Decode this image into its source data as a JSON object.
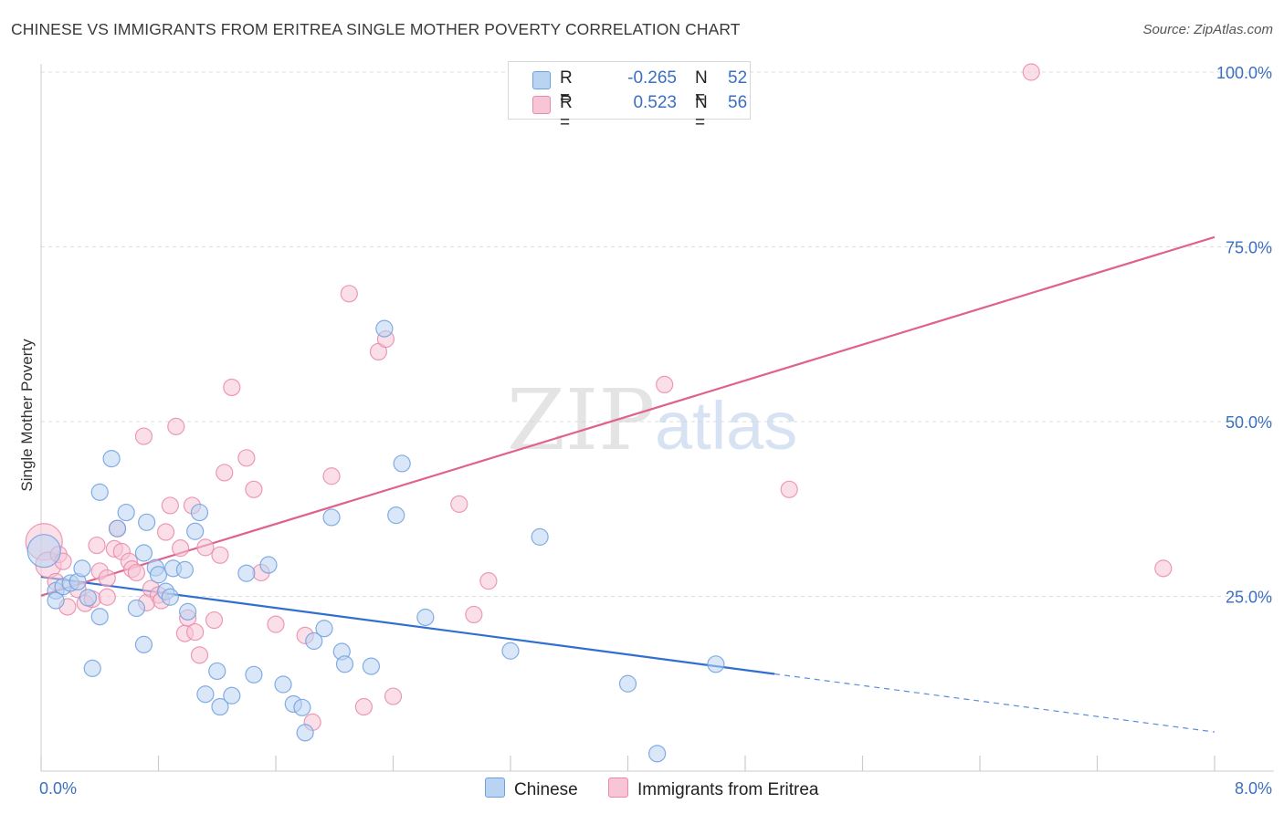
{
  "title": "CHINESE VS IMMIGRANTS FROM ERITREA SINGLE MOTHER POVERTY CORRELATION CHART",
  "source": "Source: ZipAtlas.com",
  "watermark": {
    "zip": "ZIP",
    "atlas": "atlas"
  },
  "legend": {
    "rows": [
      {
        "r_label": "R =",
        "r_value": "-0.265",
        "n_label": "N =",
        "n_value": "52"
      },
      {
        "r_label": "R =",
        "r_value": "0.523",
        "n_label": "N =",
        "n_value": "56"
      }
    ]
  },
  "bottom_legend": {
    "chinese": "Chinese",
    "eritrea": "Immigrants from Eritrea"
  },
  "colors": {
    "chinese_fill": "#b9d3f3",
    "chinese_stroke": "#6fa0de",
    "chinese_line": "#2f6fd0",
    "eritrea_fill": "#f7c5d5",
    "eritrea_stroke": "#e98aa8",
    "eritrea_line": "#e0628c",
    "tick_label": "#3a6fc4",
    "grid": "#dddddd"
  },
  "chart_data": {
    "type": "scatter",
    "title": "CHINESE VS IMMIGRANTS FROM ERITREA SINGLE MOTHER POVERTY CORRELATION CHART",
    "xlabel": "",
    "ylabel": "Single Mother Poverty",
    "xlim": [
      0,
      8.4
    ],
    "ylim": [
      0,
      102.4
    ],
    "x_tick_labels": [
      {
        "value": 0,
        "label": "0.0%"
      },
      {
        "value": 8,
        "label": "8.0%"
      }
    ],
    "y_tick_labels": [
      {
        "value": 25,
        "label": "25.0%"
      },
      {
        "value": 50,
        "label": "50.0%"
      },
      {
        "value": 75,
        "label": "75.0%"
      },
      {
        "value": 100,
        "label": "100.0%"
      }
    ],
    "x_minor_ticks": [
      0,
      0.8,
      1.6,
      2.4,
      3.2,
      4.0,
      4.8,
      5.6,
      6.4,
      7.2,
      8.0
    ],
    "grid": true,
    "legend_position": "top-center",
    "series": [
      {
        "name": "Chinese",
        "color": "#6fa0de",
        "trend": {
          "x": [
            0,
            5.0
          ],
          "y": [
            27.8,
            13.9
          ],
          "dashed_to": {
            "x": 8.0,
            "y": 5.6
          }
        },
        "points": [
          [
            0.02,
            31.5,
            18
          ],
          [
            0.1,
            25.8,
            9
          ],
          [
            0.15,
            26.4,
            9
          ],
          [
            0.2,
            26.9,
            9
          ],
          [
            0.25,
            27.1,
            9
          ],
          [
            0.1,
            24.4,
            9
          ],
          [
            0.28,
            29.0,
            9
          ],
          [
            0.32,
            24.8,
            9
          ],
          [
            0.4,
            22.1,
            9
          ],
          [
            0.48,
            44.7,
            9
          ],
          [
            0.4,
            39.9,
            9
          ],
          [
            0.52,
            34.7,
            9
          ],
          [
            0.58,
            37.0,
            9
          ],
          [
            0.65,
            23.3,
            9
          ],
          [
            0.7,
            31.2,
            9
          ],
          [
            0.72,
            35.6,
            9
          ],
          [
            0.78,
            29.1,
            9
          ],
          [
            0.8,
            28.1,
            9
          ],
          [
            0.85,
            25.7,
            9
          ],
          [
            0.88,
            24.9,
            9
          ],
          [
            0.9,
            29.0,
            9
          ],
          [
            0.98,
            28.8,
            9
          ],
          [
            1.0,
            22.8,
            9
          ],
          [
            1.05,
            34.3,
            9
          ],
          [
            1.08,
            37.0,
            9
          ],
          [
            0.35,
            14.7,
            9
          ],
          [
            0.7,
            18.1,
            9
          ],
          [
            1.12,
            11.0,
            9
          ],
          [
            1.2,
            14.3,
            9
          ],
          [
            1.22,
            9.2,
            9
          ],
          [
            1.3,
            10.8,
            9
          ],
          [
            1.4,
            28.3,
            9
          ],
          [
            1.45,
            13.8,
            9
          ],
          [
            1.55,
            29.5,
            9
          ],
          [
            1.65,
            12.4,
            9
          ],
          [
            1.72,
            9.6,
            9
          ],
          [
            1.78,
            9.1,
            9
          ],
          [
            1.8,
            5.5,
            9
          ],
          [
            1.86,
            18.6,
            9
          ],
          [
            1.93,
            20.4,
            9
          ],
          [
            1.98,
            36.3,
            9
          ],
          [
            2.05,
            17.1,
            9
          ],
          [
            2.07,
            15.3,
            9
          ],
          [
            2.25,
            15.0,
            9
          ],
          [
            2.34,
            63.3,
            9
          ],
          [
            2.42,
            36.6,
            9
          ],
          [
            2.46,
            44.0,
            9
          ],
          [
            2.62,
            22.0,
            9
          ],
          [
            3.2,
            17.2,
            9
          ],
          [
            3.4,
            33.5,
            9
          ],
          [
            4.0,
            12.5,
            9
          ],
          [
            4.2,
            2.5,
            9
          ],
          [
            4.6,
            15.3,
            9
          ]
        ]
      },
      {
        "name": "Immigrants from Eritrea",
        "color": "#e98aa8",
        "trend": {
          "x": [
            0,
            8.0
          ],
          "y": [
            25.1,
            76.4
          ]
        },
        "points": [
          [
            0.02,
            32.8,
            20
          ],
          [
            0.05,
            29.5,
            14
          ],
          [
            0.1,
            27.1,
            9
          ],
          [
            0.12,
            31.0,
            9
          ],
          [
            0.15,
            30.0,
            9
          ],
          [
            0.18,
            23.5,
            9
          ],
          [
            0.25,
            26.0,
            9
          ],
          [
            0.3,
            24.0,
            9
          ],
          [
            0.35,
            24.6,
            9
          ],
          [
            0.38,
            32.3,
            9
          ],
          [
            0.4,
            28.6,
            9
          ],
          [
            0.45,
            27.6,
            9
          ],
          [
            0.45,
            24.9,
            9
          ],
          [
            0.5,
            31.8,
            9
          ],
          [
            0.52,
            34.7,
            9
          ],
          [
            0.55,
            31.4,
            9
          ],
          [
            0.6,
            30.0,
            9
          ],
          [
            0.62,
            28.9,
            9
          ],
          [
            0.65,
            28.4,
            9
          ],
          [
            0.7,
            47.9,
            9
          ],
          [
            0.72,
            24.1,
            9
          ],
          [
            0.75,
            26.1,
            9
          ],
          [
            0.8,
            25.2,
            9
          ],
          [
            0.82,
            24.4,
            9
          ],
          [
            0.85,
            34.2,
            9
          ],
          [
            0.88,
            38.0,
            9
          ],
          [
            0.92,
            49.3,
            9
          ],
          [
            0.95,
            31.9,
            9
          ],
          [
            0.98,
            19.7,
            9
          ],
          [
            1.0,
            21.9,
            9
          ],
          [
            1.03,
            38.0,
            9
          ],
          [
            1.05,
            19.9,
            9
          ],
          [
            1.08,
            16.6,
            9
          ],
          [
            1.12,
            32.0,
            9
          ],
          [
            1.18,
            21.6,
            9
          ],
          [
            1.22,
            30.9,
            9
          ],
          [
            1.25,
            42.7,
            9
          ],
          [
            1.3,
            54.9,
            9
          ],
          [
            1.4,
            44.8,
            9
          ],
          [
            1.45,
            40.3,
            9
          ],
          [
            1.5,
            28.4,
            9
          ],
          [
            1.6,
            21.0,
            9
          ],
          [
            1.8,
            19.4,
            9
          ],
          [
            1.85,
            7.0,
            9
          ],
          [
            1.98,
            42.2,
            9
          ],
          [
            2.1,
            68.3,
            9
          ],
          [
            2.2,
            9.2,
            9
          ],
          [
            2.3,
            60.0,
            9
          ],
          [
            2.35,
            61.8,
            9
          ],
          [
            2.4,
            10.7,
            9
          ],
          [
            2.85,
            38.2,
            9
          ],
          [
            2.95,
            22.4,
            9
          ],
          [
            3.05,
            27.2,
            9
          ],
          [
            4.25,
            55.3,
            9
          ],
          [
            5.1,
            40.3,
            9
          ],
          [
            6.75,
            100.0,
            9
          ],
          [
            7.65,
            29.0,
            9
          ]
        ]
      }
    ]
  }
}
